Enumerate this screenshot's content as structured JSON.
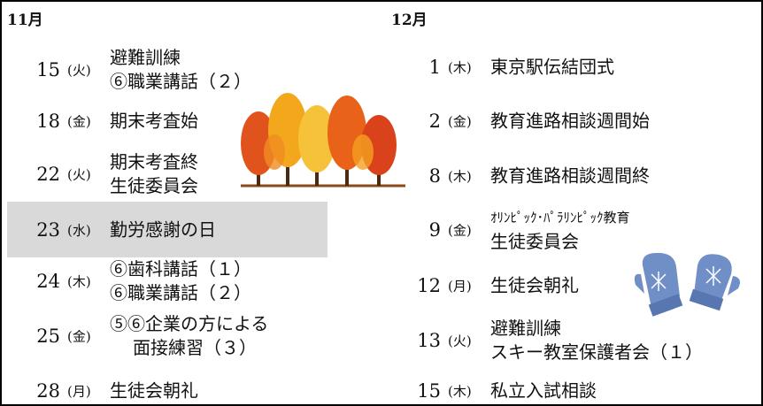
{
  "november": {
    "heading": "11月",
    "events": [
      {
        "day": "15",
        "weekday": "(火)",
        "lines": [
          "避難訓練",
          "⑥職業講話（２）"
        ]
      },
      {
        "day": "18",
        "weekday": "(金)",
        "lines": [
          "期末考査始"
        ]
      },
      {
        "day": "22",
        "weekday": "(火)",
        "lines": [
          "期末考査終",
          "生徒委員会"
        ]
      },
      {
        "day": "23",
        "weekday": "(水)",
        "lines": [
          "勤労感謝の日"
        ]
      },
      {
        "day": "24",
        "weekday": "(木)",
        "lines": [
          "⑥歯科講話（１）",
          "⑥職業講話（２）"
        ]
      },
      {
        "day": "25",
        "weekday": "(金)",
        "lines": [
          "⑤⑥企業の方による",
          "面接練習（３）"
        ]
      },
      {
        "day": "28",
        "weekday": "(月)",
        "lines": [
          "生徒会朝礼"
        ]
      }
    ]
  },
  "december": {
    "heading": "12月",
    "events": [
      {
        "day": "1",
        "weekday": "(木)",
        "lines": [
          "東京駅伝結団式"
        ]
      },
      {
        "day": "2",
        "weekday": "(金)",
        "lines": [
          "教育進路相談週間始"
        ]
      },
      {
        "day": "8",
        "weekday": "(木)",
        "lines": [
          "教育進路相談週間終"
        ]
      },
      {
        "day": "9",
        "weekday": "(金)",
        "lines": [
          "ｵﾘﾝﾋﾟｯｸ･ﾊﾟﾗﾘﾝﾋﾟｯｸ教育",
          "生徒委員会"
        ]
      },
      {
        "day": "12",
        "weekday": "(月)",
        "lines": [
          "生徒会朝礼"
        ]
      },
      {
        "day": "13",
        "weekday": "(火)",
        "lines": [
          "避難訓練",
          "スキー教室保護者会（１）"
        ]
      },
      {
        "day": "15",
        "weekday": "(木)",
        "lines": [
          "私立入試相談"
        ]
      }
    ]
  }
}
